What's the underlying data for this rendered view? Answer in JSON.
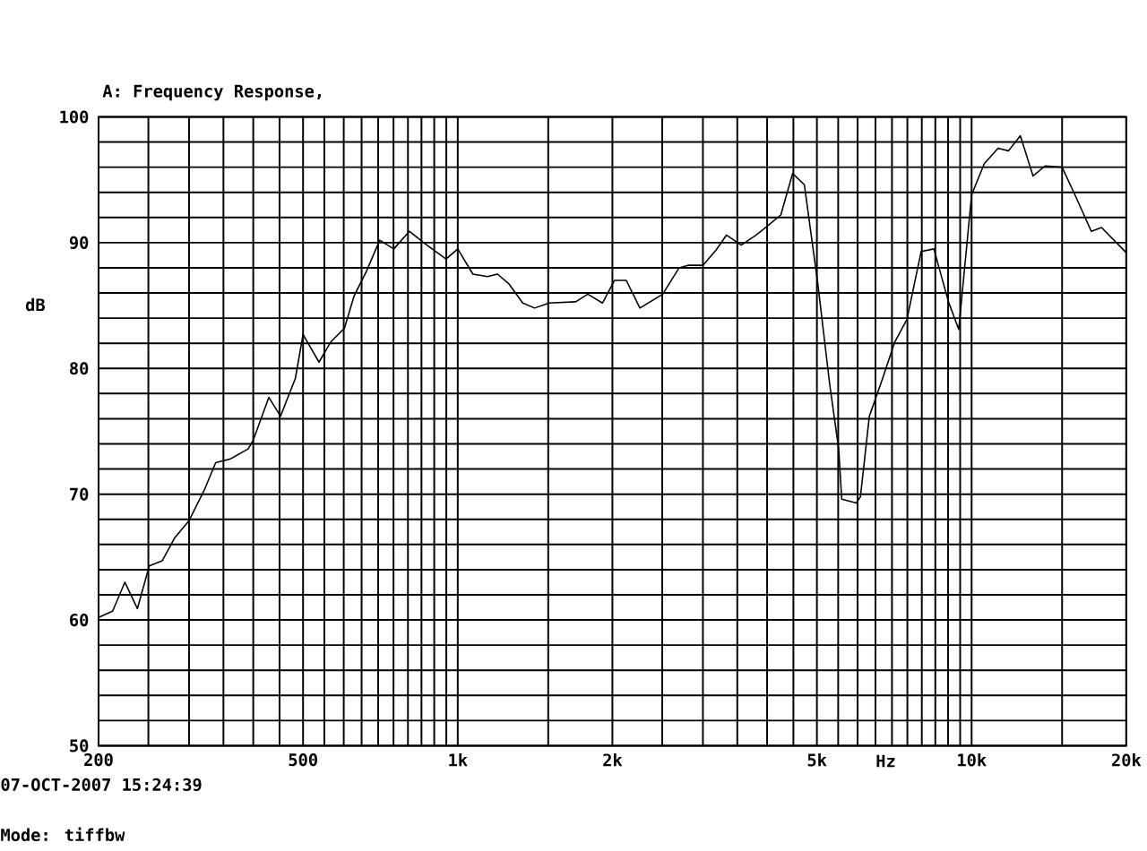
{
  "chart_data": {
    "type": "line",
    "title": "A: Frequency Response,",
    "xlabel": "Hz",
    "ylabel": "dB",
    "annotations": [
      "07-OCT-2007 15:24:39",
      "Mode: tiffbw"
    ],
    "log": "x",
    "grid": true,
    "marker": "none",
    "line_style": "solid",
    "xlim": [
      200,
      20000
    ],
    "ylim": [
      50,
      100
    ],
    "xticks": [
      {
        "value": 200,
        "label": "200"
      },
      {
        "value": 250,
        "label": null
      },
      {
        "value": 300,
        "label": null
      },
      {
        "value": 350,
        "label": null
      },
      {
        "value": 400,
        "label": null
      },
      {
        "value": 450,
        "label": null
      },
      {
        "value": 500,
        "label": "500"
      },
      {
        "value": 550,
        "label": null
      },
      {
        "value": 600,
        "label": null
      },
      {
        "value": 650,
        "label": null
      },
      {
        "value": 700,
        "label": null
      },
      {
        "value": 750,
        "label": null
      },
      {
        "value": 800,
        "label": null
      },
      {
        "value": 850,
        "label": null
      },
      {
        "value": 900,
        "label": null
      },
      {
        "value": 950,
        "label": null
      },
      {
        "value": 1000,
        "label": "1k"
      },
      {
        "value": 1500,
        "label": null
      },
      {
        "value": 2000,
        "label": "2k"
      },
      {
        "value": 2500,
        "label": null
      },
      {
        "value": 3000,
        "label": null
      },
      {
        "value": 3500,
        "label": null
      },
      {
        "value": 4000,
        "label": null
      },
      {
        "value": 4500,
        "label": null
      },
      {
        "value": 5000,
        "label": "5k"
      },
      {
        "value": 5500,
        "label": null
      },
      {
        "value": 6000,
        "label": null
      },
      {
        "value": 6500,
        "label": null
      },
      {
        "value": 7000,
        "label": null
      },
      {
        "value": 7500,
        "label": null
      },
      {
        "value": 8000,
        "label": null
      },
      {
        "value": 8500,
        "label": null
      },
      {
        "value": 9000,
        "label": null
      },
      {
        "value": 9500,
        "label": null
      },
      {
        "value": 10000,
        "label": "10k"
      },
      {
        "value": 15000,
        "label": null
      },
      {
        "value": 20000,
        "label": "20k"
      }
    ],
    "yticks": [
      50,
      {
        "value": 52,
        "label": null
      },
      {
        "value": 54,
        "label": null
      },
      {
        "value": 56,
        "label": null
      },
      {
        "value": 58,
        "label": null
      },
      60,
      {
        "value": 62,
        "label": null
      },
      {
        "value": 64,
        "label": null
      },
      {
        "value": 66,
        "label": null
      },
      {
        "value": 68,
        "label": null
      },
      70,
      {
        "value": 72,
        "label": null
      },
      {
        "value": 74,
        "label": null
      },
      {
        "value": 76,
        "label": null
      },
      {
        "value": 78,
        "label": null
      },
      80,
      {
        "value": 82,
        "label": null
      },
      {
        "value": 84,
        "label": null
      },
      {
        "value": 86,
        "label": null
      },
      {
        "value": 88,
        "label": null
      },
      90,
      {
        "value": 92,
        "label": null
      },
      {
        "value": 94,
        "label": null
      },
      {
        "value": 96,
        "label": null
      },
      {
        "value": 98,
        "label": null
      },
      100
    ],
    "x": [
      200,
      213,
      225,
      238,
      251,
      266,
      281,
      300,
      321,
      338,
      361,
      391,
      400,
      429,
      452,
      483,
      500,
      537,
      566,
      602,
      629,
      664,
      705,
      751,
      805,
      865,
      949,
      1000,
      1070,
      1142,
      1195,
      1259,
      1338,
      1411,
      1507,
      1697,
      1791,
      1913,
      2019,
      2128,
      2262,
      2506,
      2697,
      2807,
      3000,
      3181,
      3334,
      3562,
      3809,
      4028,
      4253,
      4484,
      4727,
      5021,
      5296,
      5513,
      5588,
      5965,
      6077,
      6324,
      6712,
      7087,
      7485,
      7980,
      8445,
      9015,
      9441,
      10000,
      10590,
      11260,
      11800,
      12440,
      13170,
      13900,
      15000,
      15890,
      17100,
      17900,
      20000
    ],
    "series": [
      {
        "color": "#000000",
        "values": [
          60.2,
          60.7,
          63.0,
          60.9,
          64.3,
          64.7,
          66.5,
          67.9,
          70.3,
          72.5,
          72.8,
          73.6,
          74.3,
          77.7,
          76.2,
          79.2,
          82.7,
          80.5,
          82.1,
          83.2,
          85.8,
          87.7,
          90.2,
          89.5,
          90.9,
          89.9,
          88.7,
          89.5,
          87.5,
          87.3,
          87.5,
          86.7,
          85.2,
          84.8,
          85.2,
          85.3,
          85.9,
          85.2,
          87.0,
          87.0,
          84.8,
          85.9,
          88.0,
          88.2,
          88.2,
          89.4,
          90.6,
          89.8,
          90.6,
          91.4,
          92.2,
          95.5,
          94.6,
          86.7,
          78.7,
          73.6,
          69.6,
          69.3,
          69.8,
          76.2,
          79.2,
          82.1,
          83.9,
          89.3,
          89.5,
          85.3,
          83.1,
          93.8,
          96.3,
          97.5,
          97.3,
          98.5,
          95.3,
          96.1,
          96.0,
          93.8,
          90.9,
          91.2,
          89.2
        ]
      }
    ]
  }
}
